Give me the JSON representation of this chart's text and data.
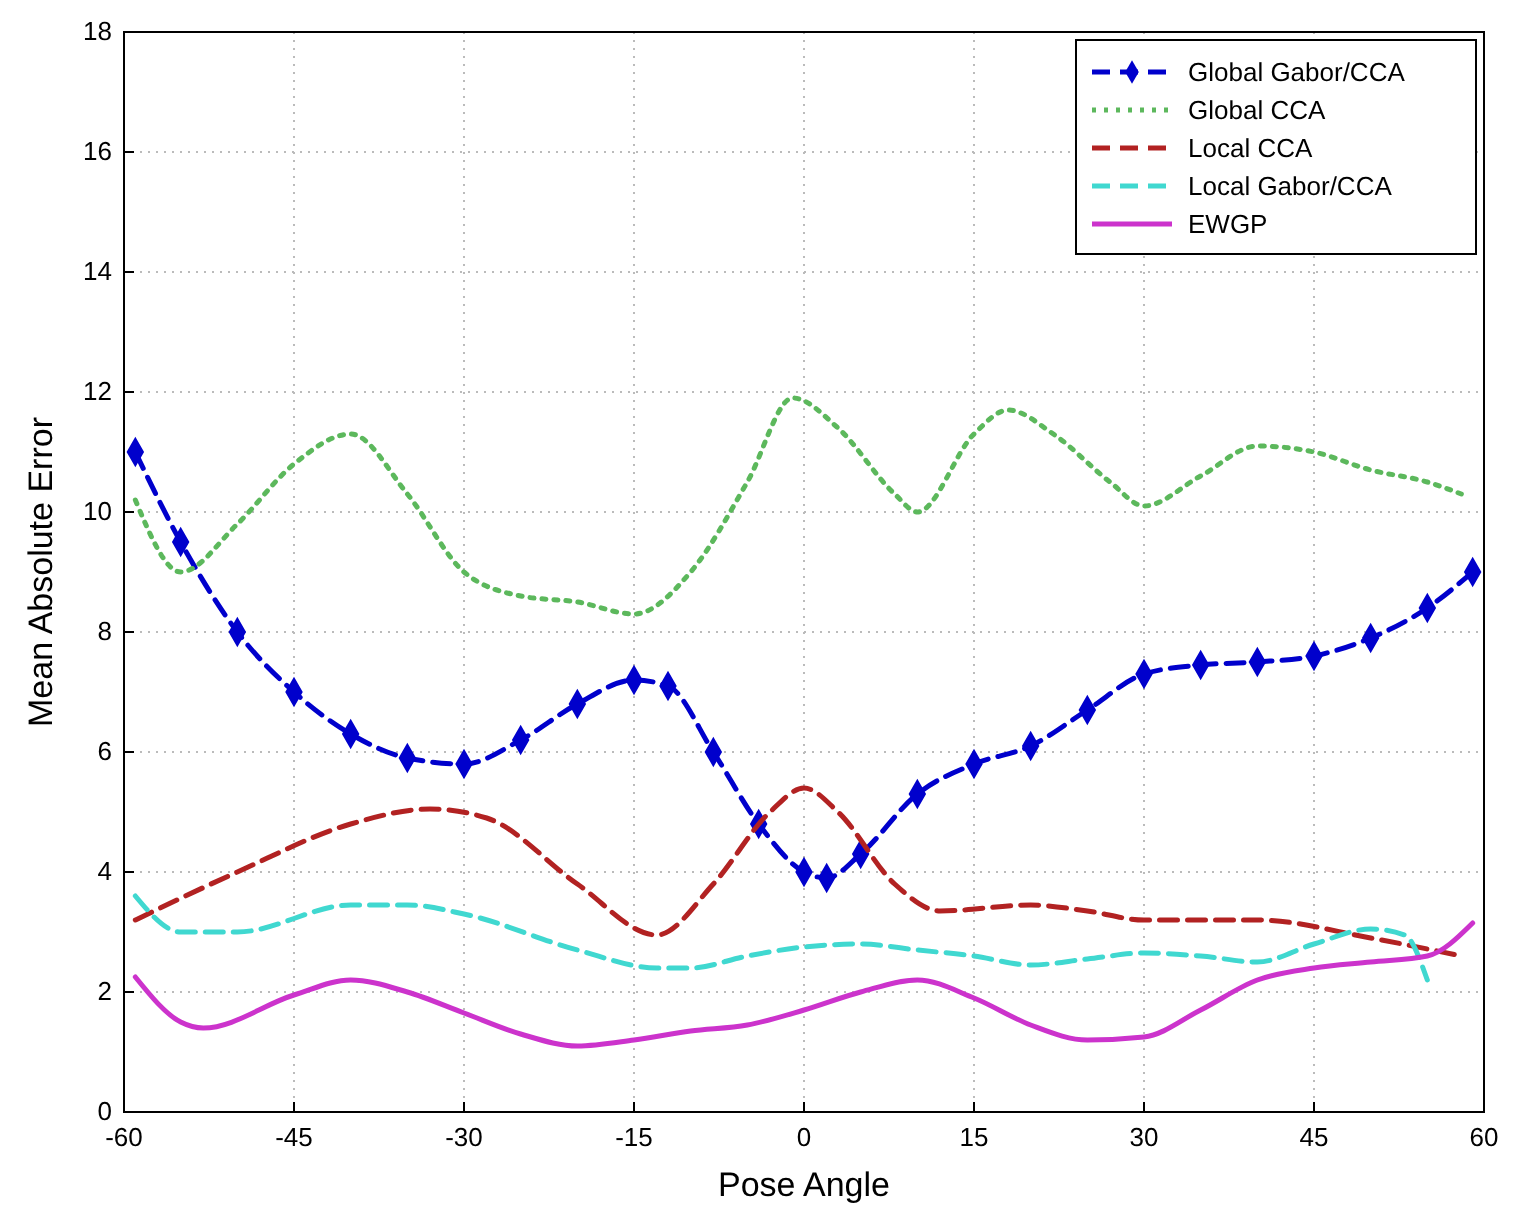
{
  "chart_data": {
    "type": "line",
    "xlabel": "Pose Angle",
    "ylabel": "Mean Absolute Error",
    "xlim": [
      -60,
      60
    ],
    "ylim": [
      0,
      18
    ],
    "xticks": [
      -60,
      -45,
      -30,
      -15,
      0,
      15,
      30,
      45,
      60
    ],
    "yticks": [
      0,
      2,
      4,
      6,
      8,
      10,
      12,
      14,
      16,
      18
    ],
    "grid": true,
    "legend": "top right",
    "series": [
      {
        "name": "Global Gabor/CCA",
        "color": "#0000cc",
        "line_style": "dashed",
        "marker": "diamond",
        "x": [
          -59,
          -55,
          -50,
          -45,
          -40,
          -35,
          -30,
          -25,
          -20,
          -15,
          -12,
          -8,
          -4,
          0,
          2,
          5,
          10,
          15,
          20,
          25,
          30,
          35,
          40,
          45,
          50,
          55,
          59
        ],
        "values": [
          11,
          9.5,
          8,
          7,
          6.3,
          5.9,
          5.8,
          6.2,
          6.8,
          7.2,
          7.1,
          6,
          4.8,
          4,
          3.9,
          4.3,
          5.3,
          5.8,
          6.1,
          6.7,
          7.3,
          7.45,
          7.5,
          7.6,
          7.9,
          8.4,
          9
        ]
      },
      {
        "name": "Global CCA",
        "color": "#5cb85c",
        "line_style": "dotted",
        "marker": "none",
        "x": [
          -59,
          -55,
          -50,
          -45,
          -40,
          -35,
          -30,
          -25,
          -20,
          -15,
          -10,
          -5,
          -1,
          3,
          8,
          10,
          15,
          18,
          22,
          27,
          30,
          35,
          40,
          45,
          50,
          55,
          58
        ],
        "values": [
          10.2,
          9,
          9.8,
          10.8,
          11.3,
          10.3,
          9,
          8.6,
          8.5,
          8.3,
          9,
          10.5,
          11.9,
          11.4,
          10.3,
          10,
          11.3,
          11.7,
          11.3,
          10.5,
          10.1,
          10.6,
          11.1,
          11,
          10.7,
          10.5,
          10.3
        ]
      },
      {
        "name": "Local CCA",
        "color": "#b22222",
        "line_style": "dashed",
        "marker": "none",
        "x": [
          -59,
          -50,
          -40,
          -33,
          -28,
          -20,
          -13,
          -8,
          -3,
          0,
          3,
          8,
          12,
          20,
          25,
          30,
          40,
          50,
          58
        ],
        "values": [
          3.2,
          4,
          4.8,
          5.05,
          4.9,
          3.8,
          2.95,
          3.8,
          5,
          5.4,
          5,
          3.8,
          3.35,
          3.45,
          3.35,
          3.2,
          3.2,
          2.9,
          2.6
        ]
      },
      {
        "name": "Local Gabor/CCA",
        "color": "#40d8d0",
        "line_style": "dashed",
        "marker": "none",
        "x": [
          -59,
          -55,
          -50,
          -40,
          -35,
          -30,
          -20,
          -13,
          -10,
          -5,
          0,
          5,
          10,
          15,
          20,
          25,
          30,
          35,
          40,
          45,
          50,
          53,
          55
        ],
        "values": [
          3.6,
          3,
          3,
          3.45,
          3.45,
          3.3,
          2.7,
          2.4,
          2.4,
          2.6,
          2.75,
          2.8,
          2.7,
          2.6,
          2.45,
          2.55,
          2.65,
          2.6,
          2.5,
          2.8,
          3.05,
          2.95,
          2.2
        ]
      },
      {
        "name": "EWGP",
        "color": "#cc33cc",
        "line_style": "solid",
        "marker": "none",
        "x": [
          -59,
          -55,
          -53,
          -45,
          -40,
          -35,
          -30,
          -25,
          -20,
          -15,
          -10,
          -5,
          0,
          5,
          10,
          15,
          20,
          25,
          30,
          35,
          40,
          45,
          50,
          55,
          59
        ],
        "values": [
          2.25,
          1.5,
          1.4,
          1.95,
          2.2,
          2,
          1.65,
          1.3,
          1.1,
          1.2,
          1.35,
          1.45,
          1.7,
          2,
          2.2,
          1.9,
          1.45,
          1.2,
          1.25,
          1.7,
          2.2,
          2.4,
          2.5,
          2.6,
          3.15
        ]
      }
    ]
  }
}
